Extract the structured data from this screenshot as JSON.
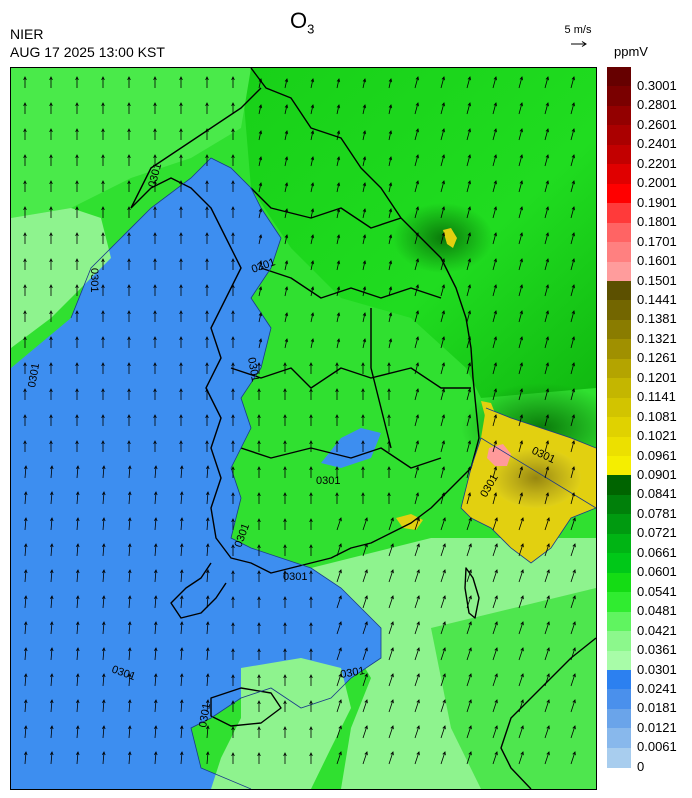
{
  "header": {
    "title": "O",
    "title_sub": "3",
    "agency": "NIER",
    "datetime": "AUG 17 2025 13:00 KST",
    "wind_reference": "5 m/s",
    "unit": "ppmV"
  },
  "map": {
    "contour_value_label": "0301",
    "wind_direction": "mostly north to north-northeast",
    "regions": {
      "sea_west": {
        "level": "0.0241-0.0301",
        "color": "#3d8ef0"
      },
      "inland_east": {
        "level": "0.0421-0.0661",
        "color": "#1fd41f"
      },
      "coast_southeast": {
        "level": "0.0961-0.1141",
        "color": "#e2d010"
      },
      "hotspot": {
        "level": "0.1501-0.1601",
        "color": "#ff9a9a"
      },
      "south_sea": {
        "level": "0.0301-0.0421",
        "color": "#8df58d"
      }
    }
  },
  "colorbar": {
    "labels": [
      "0.3001",
      "0.2801",
      "0.2601",
      "0.2401",
      "0.2201",
      "0.2001",
      "0.1901",
      "0.1801",
      "0.1701",
      "0.1601",
      "0.1501",
      "0.1441",
      "0.1381",
      "0.1321",
      "0.1261",
      "0.1201",
      "0.1141",
      "0.1081",
      "0.1021",
      "0.0961",
      "0.0901",
      "0.0841",
      "0.0781",
      "0.0721",
      "0.0661",
      "0.0601",
      "0.0541",
      "0.0481",
      "0.0421",
      "0.0361",
      "0.0301",
      "0.0241",
      "0.0181",
      "0.0121",
      "0.0061",
      "0"
    ],
    "colors": [
      "#660000",
      "#7a0000",
      "#930000",
      "#aa0000",
      "#c20000",
      "#e00000",
      "#ff0000",
      "#ff3a3a",
      "#ff6464",
      "#ff8080",
      "#ff9c9c",
      "#5c5000",
      "#736600",
      "#8a7c00",
      "#a09000",
      "#b4a400",
      "#c4b600",
      "#d2c400",
      "#e0d200",
      "#ece000",
      "#f5ee00",
      "#006400",
      "#00800a",
      "#009a10",
      "#00b414",
      "#00c818",
      "#14dc14",
      "#30ec30",
      "#60f460",
      "#8cf88c",
      "#a8fca8",
      "#2c80f0",
      "#4a90ec",
      "#6aa4ea",
      "#88b8ec",
      "#a8cdee"
    ]
  }
}
